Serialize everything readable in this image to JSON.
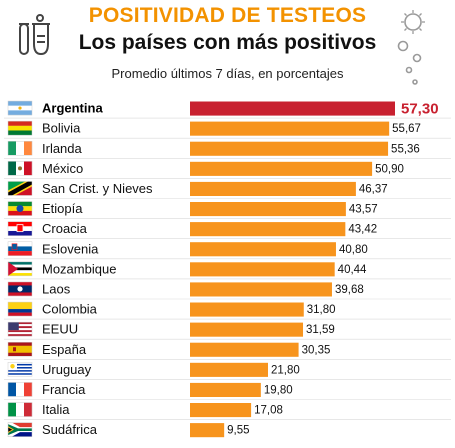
{
  "header": {
    "title": "POSITIVIDAD DE TESTEOS",
    "subtitle": "Los países con más positivos",
    "note": "Promedio últimos 7 días, en porcentajes"
  },
  "colors": {
    "title": "#f39200",
    "bar": "#f7941d",
    "highlight_bar": "#c8202f",
    "highlight_text": "#c8202f",
    "divider": "#d9d9d9"
  },
  "chart_data": {
    "type": "bar",
    "orientation": "horizontal",
    "categories": [
      "Argentina",
      "Bolivia",
      "Irlanda",
      "México",
      "San Crist. y Nieves",
      "Etiopía",
      "Croacia",
      "Eslovenia",
      "Mozambique",
      "Laos",
      "Colombia",
      "EEUU",
      "España",
      "Uruguay",
      "Francia",
      "Italia",
      "Sudáfrica"
    ],
    "values": [
      57.3,
      55.67,
      55.36,
      50.9,
      46.37,
      43.57,
      43.42,
      40.8,
      40.44,
      39.68,
      31.8,
      31.59,
      30.35,
      21.8,
      19.8,
      17.08,
      9.55
    ],
    "value_labels": [
      "57,30",
      "55,67",
      "55,36",
      "50,90",
      "46,37",
      "43,57",
      "43,42",
      "40,80",
      "40,44",
      "39,68",
      "31,80",
      "31,59",
      "30,35",
      "21,80",
      "19,80",
      "17,08",
      "9,55"
    ],
    "flags": [
      "flag-argentina",
      "flag-bolivia",
      "flag-ireland",
      "flag-mexico",
      "flag-saint-kitts",
      "flag-ethiopia",
      "flag-croatia",
      "flag-slovenia",
      "flag-mozambique",
      "flag-laos",
      "flag-colombia",
      "flag-usa",
      "flag-spain",
      "flag-uruguay",
      "flag-france",
      "flag-italy",
      "flag-south-africa"
    ],
    "highlight": "Argentina",
    "xlim": [
      0,
      57.3
    ],
    "grid": false,
    "legend": "none"
  }
}
